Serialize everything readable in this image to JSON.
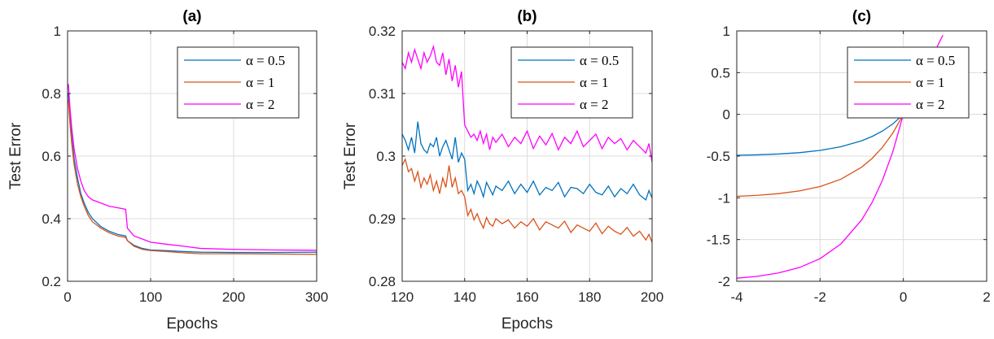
{
  "chart_data": [
    {
      "type": "line",
      "title": "(a)",
      "xlabel": "Epochs",
      "ylabel": "Test Error",
      "xlim": [
        0,
        300
      ],
      "ylim": [
        0.2,
        1
      ],
      "xticks": [
        0,
        100,
        200,
        300
      ],
      "yticks": [
        0.2,
        0.4,
        0.6,
        0.8,
        1
      ],
      "xtick_labels": [
        "0",
        "100",
        "200",
        "300"
      ],
      "ytick_labels": [
        "0.2",
        "0.4",
        "0.6",
        "0.8",
        "1"
      ],
      "grid": true,
      "legend_position": "top-right",
      "series": [
        {
          "name": "α = 0.5",
          "color": "#0072BD",
          "x": [
            1,
            3,
            5,
            8,
            12,
            16,
            20,
            25,
            30,
            40,
            50,
            60,
            70,
            72,
            80,
            90,
            100,
            120,
            140,
            160,
            200,
            250,
            300
          ],
          "y": [
            0.8,
            0.72,
            0.66,
            0.59,
            0.53,
            0.48,
            0.45,
            0.42,
            0.4,
            0.375,
            0.36,
            0.35,
            0.345,
            0.33,
            0.315,
            0.305,
            0.3,
            0.298,
            0.295,
            0.293,
            0.292,
            0.292,
            0.293
          ]
        },
        {
          "name": "α = 1",
          "color": "#D95319",
          "x": [
            1,
            3,
            5,
            8,
            12,
            16,
            20,
            25,
            30,
            40,
            50,
            60,
            70,
            72,
            80,
            90,
            100,
            120,
            140,
            160,
            200,
            250,
            300
          ],
          "y": [
            0.78,
            0.7,
            0.64,
            0.57,
            0.51,
            0.47,
            0.44,
            0.41,
            0.39,
            0.37,
            0.355,
            0.345,
            0.34,
            0.33,
            0.312,
            0.302,
            0.298,
            0.295,
            0.291,
            0.288,
            0.288,
            0.287,
            0.286
          ]
        },
        {
          "name": "α = 2",
          "color": "#FF00FF",
          "x": [
            1,
            3,
            5,
            8,
            12,
            16,
            20,
            25,
            30,
            40,
            50,
            60,
            70,
            72,
            80,
            90,
            100,
            120,
            140,
            160,
            200,
            250,
            300
          ],
          "y": [
            0.83,
            0.75,
            0.69,
            0.62,
            0.56,
            0.52,
            0.49,
            0.47,
            0.46,
            0.45,
            0.44,
            0.435,
            0.43,
            0.37,
            0.345,
            0.335,
            0.325,
            0.318,
            0.312,
            0.305,
            0.302,
            0.3,
            0.299
          ]
        }
      ]
    },
    {
      "type": "line",
      "title": "(b)",
      "xlabel": "Epochs",
      "ylabel": "Test Error",
      "xlim": [
        120,
        200
      ],
      "ylim": [
        0.28,
        0.32
      ],
      "xticks": [
        120,
        140,
        160,
        180,
        200
      ],
      "yticks": [
        0.28,
        0.29,
        0.3,
        0.31,
        0.32
      ],
      "xtick_labels": [
        "120",
        "140",
        "160",
        "180",
        "200"
      ],
      "ytick_labels": [
        "0.28",
        "0.29",
        "0.3",
        "0.31",
        "0.32"
      ],
      "grid": true,
      "legend_position": "top-right",
      "series": [
        {
          "name": "α = 0.5",
          "color": "#0072BD",
          "x": [
            120,
            121,
            122,
            123,
            124,
            125,
            126,
            127,
            128,
            129,
            130,
            131,
            132,
            133,
            134,
            135,
            136,
            137,
            138,
            139,
            140,
            141,
            142,
            143,
            144,
            145,
            146,
            147,
            148,
            149,
            150,
            152,
            154,
            156,
            158,
            160,
            162,
            164,
            166,
            168,
            170,
            172,
            174,
            176,
            178,
            180,
            182,
            184,
            186,
            188,
            190,
            192,
            194,
            196,
            198,
            199,
            200
          ],
          "y": [
            0.3035,
            0.3025,
            0.301,
            0.303,
            0.3005,
            0.3055,
            0.302,
            0.301,
            0.3005,
            0.302,
            0.3015,
            0.303,
            0.3,
            0.3015,
            0.3025,
            0.301,
            0.2995,
            0.303,
            0.299,
            0.3005,
            0.2995,
            0.2945,
            0.2955,
            0.294,
            0.296,
            0.295,
            0.2935,
            0.2958,
            0.2948,
            0.2938,
            0.2952,
            0.2945,
            0.296,
            0.294,
            0.2955,
            0.2942,
            0.296,
            0.2938,
            0.295,
            0.2945,
            0.2958,
            0.2935,
            0.295,
            0.2948,
            0.294,
            0.2955,
            0.2942,
            0.2938,
            0.2952,
            0.2935,
            0.2948,
            0.294,
            0.2955,
            0.2938,
            0.293,
            0.2945,
            0.2933
          ]
        },
        {
          "name": "α = 1",
          "color": "#D95319",
          "x": [
            120,
            121,
            122,
            123,
            124,
            125,
            126,
            127,
            128,
            129,
            130,
            131,
            132,
            133,
            134,
            135,
            136,
            137,
            138,
            139,
            140,
            141,
            142,
            143,
            144,
            145,
            146,
            147,
            148,
            149,
            150,
            152,
            154,
            156,
            158,
            160,
            162,
            164,
            166,
            168,
            170,
            172,
            174,
            176,
            178,
            180,
            182,
            184,
            186,
            188,
            190,
            192,
            194,
            196,
            198,
            199,
            200
          ],
          "y": [
            0.2985,
            0.2995,
            0.2975,
            0.298,
            0.296,
            0.2975,
            0.295,
            0.2965,
            0.2955,
            0.297,
            0.2945,
            0.296,
            0.294,
            0.2965,
            0.295,
            0.2985,
            0.295,
            0.2965,
            0.294,
            0.2945,
            0.2935,
            0.2905,
            0.2915,
            0.2898,
            0.2908,
            0.2895,
            0.2885,
            0.2902,
            0.2892,
            0.2888,
            0.29,
            0.2892,
            0.2898,
            0.2885,
            0.2895,
            0.2888,
            0.29,
            0.2882,
            0.2895,
            0.289,
            0.2885,
            0.2896,
            0.2878,
            0.289,
            0.2885,
            0.288,
            0.2893,
            0.2876,
            0.2888,
            0.288,
            0.2875,
            0.2886,
            0.2872,
            0.288,
            0.2866,
            0.2875,
            0.2862
          ]
        },
        {
          "name": "α = 2",
          "color": "#FF00FF",
          "x": [
            120,
            121,
            122,
            123,
            124,
            125,
            126,
            127,
            128,
            129,
            130,
            131,
            132,
            133,
            134,
            135,
            136,
            137,
            138,
            139,
            140,
            141,
            142,
            143,
            144,
            145,
            146,
            147,
            148,
            149,
            150,
            152,
            154,
            156,
            158,
            160,
            162,
            164,
            166,
            168,
            170,
            172,
            174,
            176,
            178,
            180,
            182,
            184,
            186,
            188,
            190,
            192,
            194,
            196,
            198,
            199,
            200
          ],
          "y": [
            0.315,
            0.314,
            0.3165,
            0.315,
            0.317,
            0.3155,
            0.314,
            0.3165,
            0.315,
            0.316,
            0.3175,
            0.315,
            0.3145,
            0.3165,
            0.313,
            0.3155,
            0.312,
            0.3145,
            0.311,
            0.3135,
            0.305,
            0.304,
            0.303,
            0.3035,
            0.3025,
            0.304,
            0.302,
            0.3035,
            0.301,
            0.303,
            0.3022,
            0.3035,
            0.3015,
            0.303,
            0.302,
            0.304,
            0.3012,
            0.3032,
            0.3018,
            0.3036,
            0.301,
            0.303,
            0.302,
            0.304,
            0.3015,
            0.3025,
            0.3035,
            0.3012,
            0.303,
            0.302,
            0.3028,
            0.301,
            0.3025,
            0.3015,
            0.3005,
            0.302,
            0.299
          ]
        }
      ]
    },
    {
      "type": "line",
      "title": "(c)",
      "xlabel": "",
      "ylabel": "",
      "xlim": [
        -4,
        2
      ],
      "ylim": [
        -2,
        1
      ],
      "xticks": [
        -4,
        -2,
        0,
        2
      ],
      "yticks": [
        -2,
        -1.5,
        -1,
        -0.5,
        0,
        0.5,
        1
      ],
      "xtick_labels": [
        "-4",
        "-2",
        "0",
        "2"
      ],
      "ytick_labels": [
        "-2",
        "-1.5",
        "-1",
        "-0.5",
        "0",
        "0.5",
        "1"
      ],
      "grid": true,
      "legend_position": "top-right",
      "series": [
        {
          "name": "α = 0.5",
          "color": "#0072BD",
          "x": [
            -4,
            -3.5,
            -3,
            -2.5,
            -2,
            -1.5,
            -1,
            -0.75,
            -0.5,
            -0.25,
            0
          ],
          "y": [
            -0.49,
            -0.485,
            -0.475,
            -0.459,
            -0.432,
            -0.388,
            -0.316,
            -0.265,
            -0.199,
            -0.113,
            0
          ]
        },
        {
          "name": "α = 1",
          "color": "#D95319",
          "x": [
            -4,
            -3.5,
            -3,
            -2.5,
            -2,
            -1.5,
            -1,
            -0.75,
            -0.5,
            -0.25,
            0
          ],
          "y": [
            -0.982,
            -0.97,
            -0.95,
            -0.918,
            -0.865,
            -0.777,
            -0.632,
            -0.528,
            -0.393,
            -0.221,
            0
          ]
        },
        {
          "name": "α = 2",
          "color": "#FF00FF",
          "x": [
            -4,
            -3.5,
            -3,
            -2.5,
            -2,
            -1.5,
            -1,
            -0.75,
            -0.5,
            -0.25,
            0,
            0.25,
            0.5,
            0.75,
            0.95
          ],
          "y": [
            -1.963,
            -1.94,
            -1.9,
            -1.836,
            -1.729,
            -1.553,
            -1.264,
            -1.055,
            -0.787,
            -0.442,
            0,
            0.25,
            0.5,
            0.75,
            0.95
          ]
        }
      ]
    }
  ]
}
